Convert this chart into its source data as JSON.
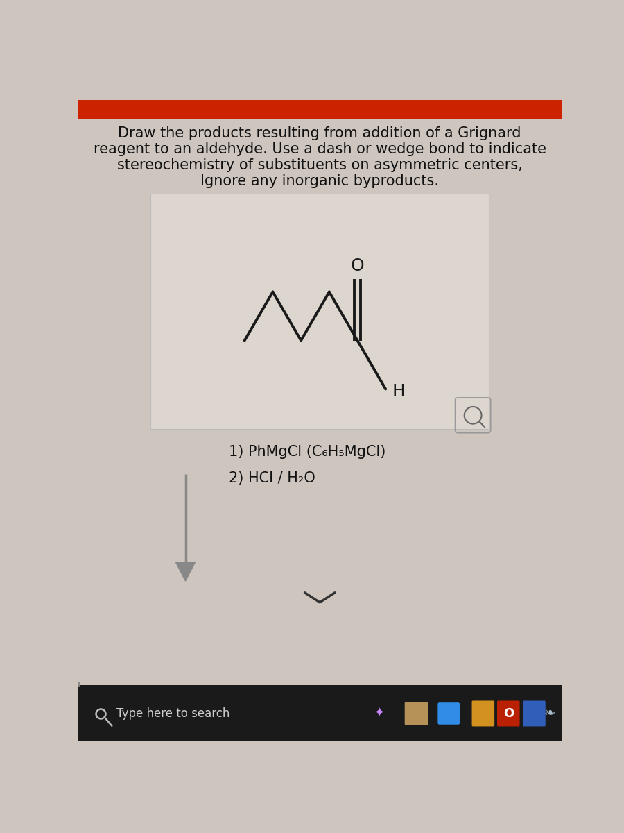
{
  "bg_top_color": "#cc2200",
  "bg_main_color": "#cdc5be",
  "white_box_color": "#ddd6cf",
  "title_lines": [
    "Draw the products resulting from addition of a Grignard",
    "reagent to an aldehyde. Use a dash or wedge bond to indicate",
    "stereochemistry of substituents on asymmetric centers,",
    "Ignore any inorganic byproducts."
  ],
  "title_fontsize": 15,
  "title_color": "#111111",
  "molecule_color": "#1a1a1a",
  "reagent_line1": "1) PhMgCl (C₆H₅MgCl)",
  "reagent_line2": "2) HCl / H₂O",
  "reagent_fontsize": 15,
  "reagent_color": "#111111",
  "taskbar_color": "#1a1a1a",
  "search_text": "Type here to search",
  "search_text_color": "#cccccc",
  "box_edge_color": "#bbbbbb",
  "arrow_color": "#888888",
  "chevron_color": "#333333"
}
